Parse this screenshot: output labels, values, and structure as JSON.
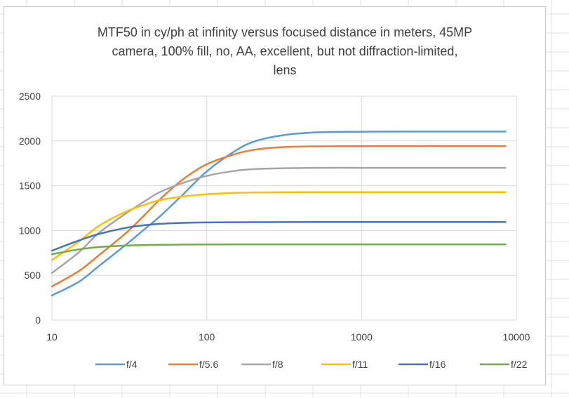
{
  "chart_data": {
    "type": "line",
    "title_lines": [
      "MTF50 in cy/ph at infinity versus focused distance in meters, 45MP",
      "camera, 100% fill, no, AA, excellent, but not diffraction-limited,",
      "lens"
    ],
    "xlabel": "",
    "ylabel": "",
    "xscale": "log",
    "xlim": [
      10,
      10000
    ],
    "ylim": [
      0,
      2500
    ],
    "x_ticks": [
      10,
      100,
      1000,
      10000
    ],
    "x_tick_labels": [
      "10",
      "100",
      "1000",
      "10000"
    ],
    "y_ticks": [
      0,
      500,
      1000,
      1500,
      2000,
      2500
    ],
    "y_tick_labels": [
      "0",
      "500",
      "1000",
      "1500",
      "2000",
      "2500"
    ],
    "grid": true,
    "legend_position": "bottom",
    "x": [
      10,
      15,
      20,
      30,
      40,
      50,
      70,
      100,
      150,
      200,
      300,
      500,
      1000,
      2000,
      5000,
      8500
    ],
    "series": [
      {
        "name": "f/4",
        "color": "#5B9BD5",
        "values": [
          275,
          430,
          600,
          840,
          1020,
          1160,
          1400,
          1660,
          1880,
          1990,
          2060,
          2095,
          2103,
          2105,
          2105,
          2105
        ]
      },
      {
        "name": "f/5.6",
        "color": "#ED7D31",
        "values": [
          375,
          550,
          720,
          970,
          1180,
          1350,
          1570,
          1740,
          1850,
          1900,
          1930,
          1940,
          1942,
          1943,
          1943,
          1943
        ]
      },
      {
        "name": "f/8",
        "color": "#A5A5A5",
        "values": [
          525,
          760,
          970,
          1190,
          1330,
          1430,
          1530,
          1610,
          1665,
          1685,
          1695,
          1700,
          1700,
          1700,
          1700,
          1700
        ]
      },
      {
        "name": "f/11",
        "color": "#FFC000",
        "values": [
          670,
          880,
          1050,
          1210,
          1290,
          1340,
          1380,
          1405,
          1420,
          1425,
          1427,
          1428,
          1428,
          1428,
          1428,
          1428
        ]
      },
      {
        "name": "f/16",
        "color": "#4472C4",
        "values": [
          775,
          890,
          960,
          1030,
          1060,
          1075,
          1085,
          1090,
          1092,
          1093,
          1094,
          1095,
          1095,
          1095,
          1095,
          1095
        ]
      },
      {
        "name": "f/22",
        "color": "#70AD47",
        "values": [
          735,
          790,
          815,
          832,
          838,
          841,
          843,
          844,
          845,
          845,
          845,
          845,
          845,
          845,
          845,
          845
        ]
      }
    ]
  }
}
